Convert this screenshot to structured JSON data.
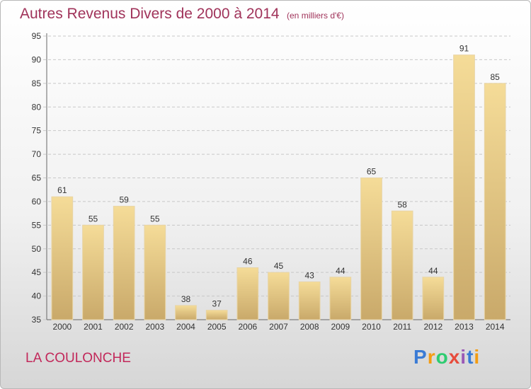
{
  "header": {
    "title": "Autres Revenus Divers de 2000 à 2014",
    "unit": "(en milliers d'€)"
  },
  "footer": {
    "location": "LA COULONCHE",
    "logo": {
      "letters": [
        "P",
        "r",
        "o",
        "x",
        "i",
        "t",
        "i"
      ],
      "colors": [
        "#3a7bd5",
        "#f39c12",
        "#2ecc71",
        "#e74c3c",
        "#9b59b6",
        "#3a7bd5",
        "#f39c12"
      ]
    }
  },
  "colors": {
    "title": "#a0335a",
    "location": "#c2285a",
    "bar_light": "#f5dc98",
    "bar_dark": "#c9a96a"
  },
  "chart_data": {
    "type": "bar",
    "title": "Autres Revenus Divers de 2000 à 2014",
    "xlabel": "",
    "ylabel": "",
    "categories": [
      "2000",
      "2001",
      "2002",
      "2003",
      "2004",
      "2005",
      "2006",
      "2007",
      "2008",
      "2009",
      "2010",
      "2011",
      "2012",
      "2013",
      "2014"
    ],
    "values": [
      61,
      55,
      59,
      55,
      38,
      37,
      46,
      45,
      43,
      44,
      65,
      58,
      44,
      91,
      85
    ],
    "ylim": [
      35,
      95
    ],
    "yticks": [
      35,
      40,
      45,
      50,
      55,
      60,
      65,
      70,
      75,
      80,
      85,
      90,
      95
    ],
    "grid": true
  }
}
